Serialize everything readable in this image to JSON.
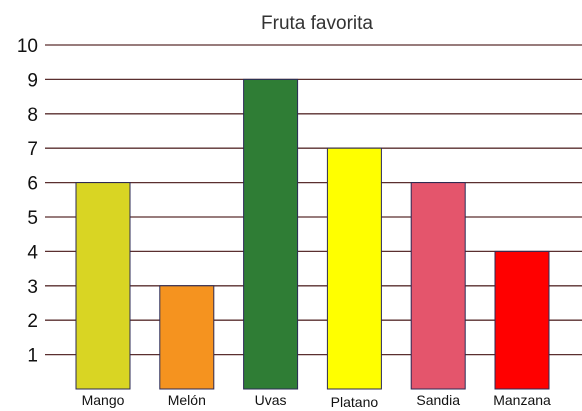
{
  "chart_data": {
    "type": "bar",
    "title": "Fruta favorita",
    "xlabel": "",
    "ylabel": "",
    "categories": [
      "Mango",
      "Melón",
      "Uvas",
      "Platano",
      "Sandia",
      "Manzana"
    ],
    "values": [
      6,
      3,
      9,
      7,
      6,
      4
    ],
    "colors": [
      "#d9d523",
      "#f5931f",
      "#2f7d35",
      "#ffff00",
      "#e4556c",
      "#ff0000"
    ],
    "ylim": [
      0,
      10
    ],
    "yticks": [
      1,
      2,
      3,
      4,
      5,
      6,
      7,
      8,
      9,
      10
    ],
    "ytick_labels": [
      "1",
      "2",
      "3",
      "4",
      "5",
      "6",
      "7",
      "8",
      "9",
      "10"
    ],
    "grid": true,
    "legend": "none"
  }
}
